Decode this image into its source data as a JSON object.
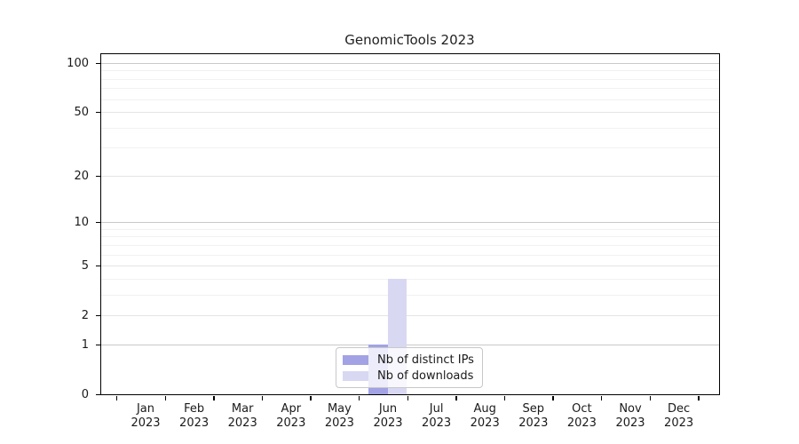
{
  "title": "GenomicTools 2023",
  "chart_data": {
    "type": "bar",
    "title": "GenomicTools 2023",
    "y_scale": "log1p",
    "y_ticks": [
      0,
      1,
      2,
      5,
      10,
      20,
      50,
      100
    ],
    "y_major_dark_ticks": [
      1,
      10,
      100
    ],
    "y_minor_gridlines": [
      3,
      4,
      6,
      7,
      8,
      9,
      30,
      40,
      60,
      70,
      80,
      90
    ],
    "ylim": [
      0,
      107
    ],
    "grid": true,
    "categories": [
      "Jan 2023",
      "Feb 2023",
      "Mar 2023",
      "Apr 2023",
      "May 2023",
      "Jun 2023",
      "Jul 2023",
      "Aug 2023",
      "Sep 2023",
      "Oct 2023",
      "Nov 2023",
      "Dec 2023"
    ],
    "x_month_labels": [
      "Jan",
      "Feb",
      "Mar",
      "Apr",
      "May",
      "Jun",
      "Jul",
      "Aug",
      "Sep",
      "Oct",
      "Nov",
      "Dec"
    ],
    "x_year_label": "2023",
    "series": [
      {
        "name": "Nb of distinct IPs",
        "color": "#a2a2e5",
        "values": [
          0,
          0,
          0,
          0,
          0,
          1,
          0,
          0,
          0,
          0,
          0,
          0
        ]
      },
      {
        "name": "Nb of downloads",
        "color": "#d8d8f3",
        "values": [
          0,
          0,
          0,
          0,
          0,
          4,
          0,
          0,
          0,
          0,
          0,
          0
        ]
      }
    ],
    "legend_position": "lower center"
  },
  "colors": {
    "spine": "#000000",
    "grid_major_dark": "#c9c9c9",
    "grid_major_light": "#e4e4e4",
    "grid_minor": "#f1f1f1",
    "background": "#ffffff"
  }
}
